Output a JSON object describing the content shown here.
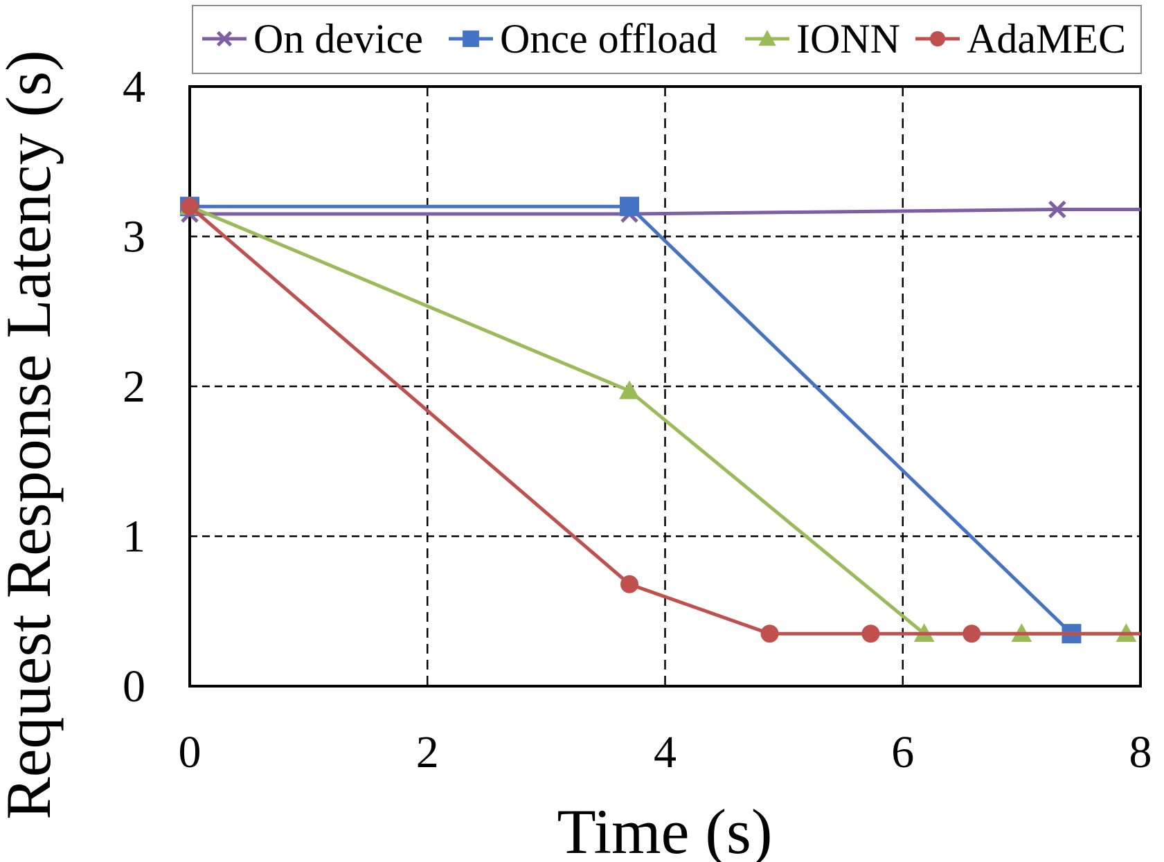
{
  "chart_data": {
    "type": "line",
    "title": "",
    "xlabel": "Time (s)",
    "ylabel": "Request Response Latency (s)",
    "xlim": [
      0,
      8
    ],
    "ylim": [
      0,
      4
    ],
    "xticks": [
      "0",
      "2",
      "4",
      "6",
      "8"
    ],
    "yticks": [
      "0",
      "1",
      "2",
      "3",
      "4"
    ],
    "grid": true,
    "legend_position": "top",
    "series": [
      {
        "name": "On device",
        "color": "#7F5FA3",
        "marker": "x",
        "points": [
          [
            0,
            3.15
          ],
          [
            3.7,
            3.15
          ],
          [
            7.3,
            3.18
          ],
          [
            8.0,
            3.18
          ]
        ],
        "marker_points": [
          [
            0,
            3.15
          ],
          [
            3.7,
            3.15
          ],
          [
            7.3,
            3.18
          ]
        ]
      },
      {
        "name": "Once offload",
        "color": "#4472C4",
        "marker": "square",
        "points": [
          [
            0,
            3.2
          ],
          [
            3.7,
            3.2
          ],
          [
            7.42,
            0.35
          ]
        ],
        "marker_points": [
          [
            0,
            3.2
          ],
          [
            3.7,
            3.2
          ],
          [
            7.42,
            0.35
          ]
        ]
      },
      {
        "name": "IONN",
        "color": "#9BBB59",
        "marker": "triangle",
        "points": [
          [
            0,
            3.2
          ],
          [
            3.7,
            1.97
          ],
          [
            6.18,
            0.35
          ],
          [
            7.0,
            0.35
          ],
          [
            7.88,
            0.35
          ]
        ],
        "marker_points": [
          [
            0,
            3.2
          ],
          [
            3.7,
            1.97
          ],
          [
            6.18,
            0.35
          ],
          [
            7.0,
            0.35
          ],
          [
            7.88,
            0.35
          ]
        ]
      },
      {
        "name": "AdaMEC",
        "color": "#C0504D",
        "marker": "circle",
        "points": [
          [
            0,
            3.2
          ],
          [
            3.7,
            0.68
          ],
          [
            4.88,
            0.35
          ],
          [
            5.73,
            0.35
          ],
          [
            6.58,
            0.35
          ],
          [
            8.0,
            0.35
          ]
        ],
        "marker_points": [
          [
            0,
            3.2
          ],
          [
            3.7,
            0.68
          ],
          [
            4.88,
            0.35
          ],
          [
            5.73,
            0.35
          ],
          [
            6.58,
            0.35
          ]
        ]
      }
    ]
  }
}
